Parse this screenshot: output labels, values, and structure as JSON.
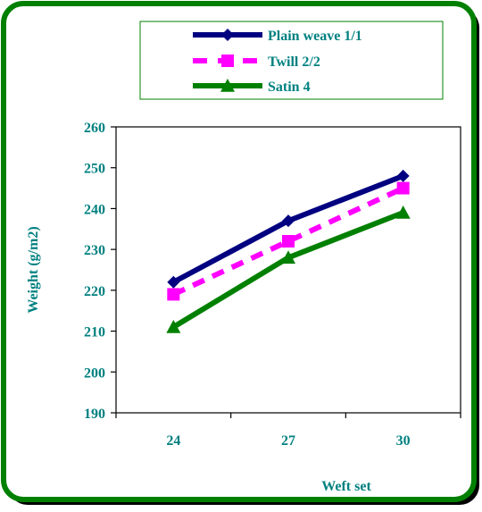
{
  "chart_data": {
    "type": "line",
    "title": "",
    "xlabel": "Weft set",
    "ylabel": "Weight (g/m2)",
    "categories": [
      "24",
      "27",
      "30"
    ],
    "ylim": [
      190,
      260
    ],
    "yticks": [
      190,
      200,
      210,
      220,
      230,
      240,
      250,
      260
    ],
    "grid": false,
    "legend_position": "top",
    "series": [
      {
        "name": "Plain weave 1/1",
        "values": [
          222,
          237,
          248
        ],
        "color": "#000080",
        "marker": "diamond",
        "line_style": "solid"
      },
      {
        "name": "Twill 2/2",
        "values": [
          219,
          232,
          245
        ],
        "color": "#ff00ff",
        "marker": "square",
        "line_style": "dashed"
      },
      {
        "name": "Satin 4",
        "values": [
          211,
          228,
          239
        ],
        "color": "#008000",
        "marker": "triangle",
        "line_style": "solid"
      }
    ]
  },
  "colors": {
    "frame_border": "#008000",
    "frame_shadow": "#000000",
    "label_text": "#008080",
    "axis": "#000000"
  }
}
